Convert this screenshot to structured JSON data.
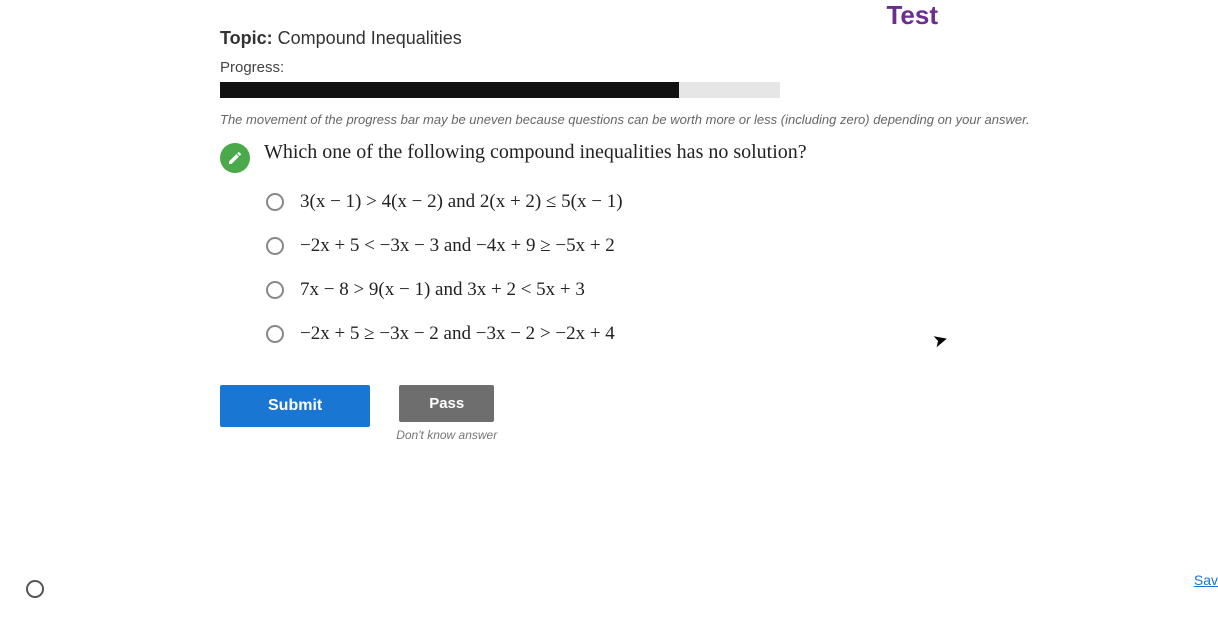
{
  "header": {
    "test_label": "Test"
  },
  "topic": {
    "label": "Topic:",
    "value": "Compound Inequalities"
  },
  "progress": {
    "label": "Progress:",
    "fill_percent": 82,
    "note": "The movement of the progress bar may be uneven because questions can be worth more or less (including zero) depending on your answer.",
    "track_color": "#e6e6e6",
    "fill_color": "#111111"
  },
  "question": {
    "text": "Which one of the following compound inequalities has no solution?",
    "badge_color": "#4aa94a"
  },
  "options": [
    {
      "math": "3(x − 1) > 4(x − 2)  and  2(x + 2) ≤ 5(x − 1)"
    },
    {
      "math": "−2x + 5 < −3x − 3  and  −4x + 9 ≥ −5x + 2"
    },
    {
      "math": "7x − 8 > 9(x − 1)  and  3x + 2 < 5x + 3"
    },
    {
      "math": "−2x + 5 ≥ −3x − 2  and  −3x − 2 > −2x + 4"
    }
  ],
  "actions": {
    "submit": "Submit",
    "pass": "Pass",
    "pass_hint": "Don't know answer",
    "save": "Sav"
  },
  "colors": {
    "submit_bg": "#1976d2",
    "pass_bg": "#6e6e6e",
    "test_color": "#6b2d8e"
  }
}
